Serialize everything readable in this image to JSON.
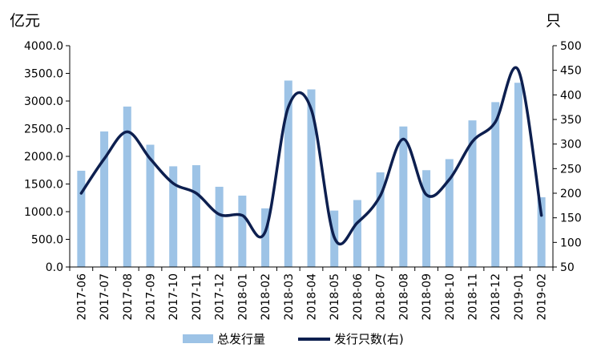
{
  "chart_data": {
    "type": "bar+line",
    "left_axis_unit": "亿元",
    "right_axis_unit": "只",
    "categories": [
      "2017-06",
      "2017-07",
      "2017-08",
      "2017-09",
      "2017-10",
      "2017-11",
      "2017-12",
      "2018-01",
      "2018-02",
      "2018-03",
      "2018-04",
      "2018-05",
      "2018-06",
      "2018-07",
      "2018-08",
      "2018-09",
      "2018-10",
      "2018-11",
      "2018-12",
      "2019-01",
      "2019-02"
    ],
    "left_ticks": [
      "0.0",
      "500.0",
      "1000.0",
      "1500.0",
      "2000.0",
      "2500.0",
      "3000.0",
      "3500.0",
      "4000.0"
    ],
    "right_ticks": [
      "50",
      "100",
      "150",
      "200",
      "250",
      "300",
      "350",
      "400",
      "450",
      "500"
    ],
    "ylim_left": [
      0,
      4000
    ],
    "ylim_right": [
      50,
      500
    ],
    "series": [
      {
        "name": "总发行量",
        "type": "bar",
        "axis": "left",
        "color": "#9dc3e6",
        "values": [
          1740,
          2450,
          2900,
          2210,
          1820,
          1840,
          1450,
          1290,
          1060,
          3370,
          3210,
          1020,
          1210,
          1710,
          2540,
          1750,
          1950,
          2650,
          2980,
          3330,
          1260
        ]
      },
      {
        "name": "发行只数(右)",
        "type": "line",
        "axis": "right",
        "color": "#0d1f4f",
        "values": [
          200,
          270,
          325,
          270,
          220,
          200,
          157,
          155,
          122,
          375,
          370,
          110,
          140,
          195,
          310,
          197,
          228,
          305,
          345,
          450,
          155
        ]
      }
    ],
    "legend_position": "bottom"
  }
}
